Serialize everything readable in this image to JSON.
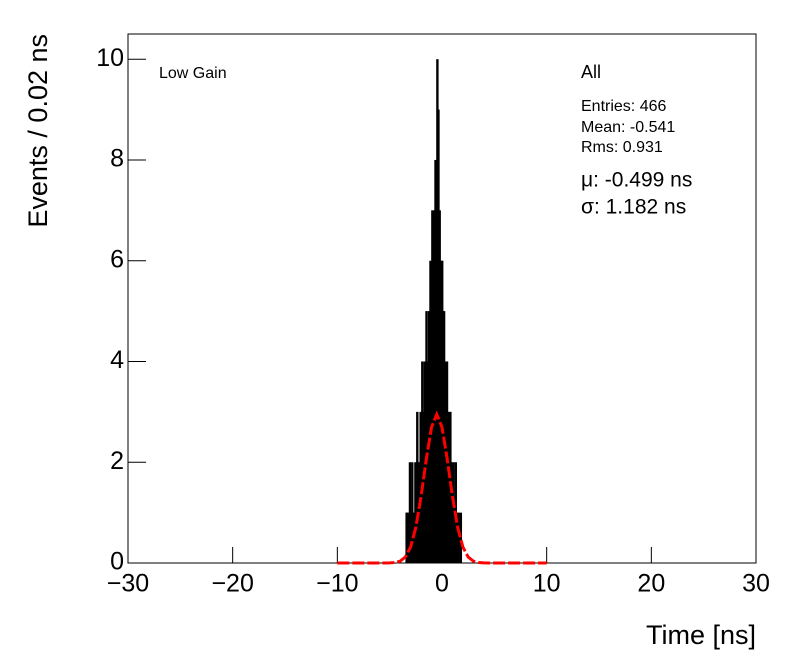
{
  "chart_data": {
    "type": "histogram",
    "x_label": "Time [ns]",
    "y_label": "Events / 0.02 ns",
    "annotation": "Low Gain",
    "stats": {
      "title": "All",
      "lines": [
        "Entries: 466",
        "Mean: -0.541",
        "Rms: 0.931"
      ],
      "fit": [
        "μ: -0.499 ns",
        "σ: 1.182 ns"
      ]
    },
    "xlim": [
      -30,
      30
    ],
    "ylim": [
      0,
      10.5
    ],
    "xticks": [
      {
        "value": -30,
        "label": "−30"
      },
      {
        "value": -20,
        "label": "−20"
      },
      {
        "value": -10,
        "label": "−10"
      },
      0,
      10,
      20,
      30
    ],
    "yticks": [
      0,
      2,
      4,
      6,
      8,
      10
    ],
    "series": [
      {
        "name": "All",
        "color": "#000000",
        "x": [
          -3.38,
          -3.3,
          -3.2,
          -3.06,
          -2.96,
          -2.84,
          -2.76,
          -2.64,
          -2.54,
          -2.46,
          -2.36,
          -2.28,
          -2.2,
          -2.12,
          -2.04,
          -1.96,
          -1.88,
          -1.8,
          -1.72,
          -1.64,
          -1.56,
          -1.48,
          -1.4,
          -1.32,
          -1.24,
          -1.16,
          -1.1,
          -1.04,
          -0.98,
          -0.92,
          -0.86,
          -0.8,
          -0.74,
          -0.68,
          -0.62,
          -0.56,
          -0.5,
          -0.44,
          -0.4,
          -0.34,
          -0.28,
          -0.22,
          -0.16,
          -0.1,
          -0.04,
          0.02,
          0.08,
          0.14,
          0.2,
          0.26,
          0.32,
          0.4,
          0.48,
          0.56,
          0.64,
          0.72,
          0.8,
          0.9,
          1.0,
          1.1,
          1.2,
          1.32,
          1.46,
          1.6,
          1.8
        ],
        "values": [
          1,
          1,
          1,
          2,
          1,
          2,
          1,
          1,
          2,
          1,
          3,
          2,
          1,
          2,
          3,
          2,
          4,
          3,
          2,
          4,
          3,
          5,
          4,
          3,
          5,
          4,
          6,
          5,
          4,
          7,
          5,
          6,
          7,
          5,
          8,
          6,
          7,
          10,
          5,
          9,
          6,
          7,
          5,
          6,
          4,
          6,
          5,
          4,
          5,
          3,
          4,
          3,
          4,
          2,
          3,
          2,
          3,
          2,
          1,
          2,
          1,
          2,
          1,
          1,
          1
        ]
      },
      {
        "name": "fit",
        "color": "#ff0000",
        "x": [
          -10,
          -6,
          -5,
          -4.5,
          -4,
          -3.5,
          -3,
          -2.5,
          -2,
          -1.5,
          -1,
          -0.5,
          0,
          0.5,
          1,
          1.5,
          2,
          2.5,
          3,
          3.5,
          4,
          5,
          10
        ],
        "values": [
          0,
          0,
          0.002,
          0.0096,
          0.037,
          0.118,
          0.315,
          0.705,
          1.319,
          2.062,
          2.697,
          2.95,
          2.697,
          2.062,
          1.319,
          0.705,
          0.315,
          0.118,
          0.037,
          0.0096,
          0.002,
          0,
          0
        ]
      }
    ]
  }
}
